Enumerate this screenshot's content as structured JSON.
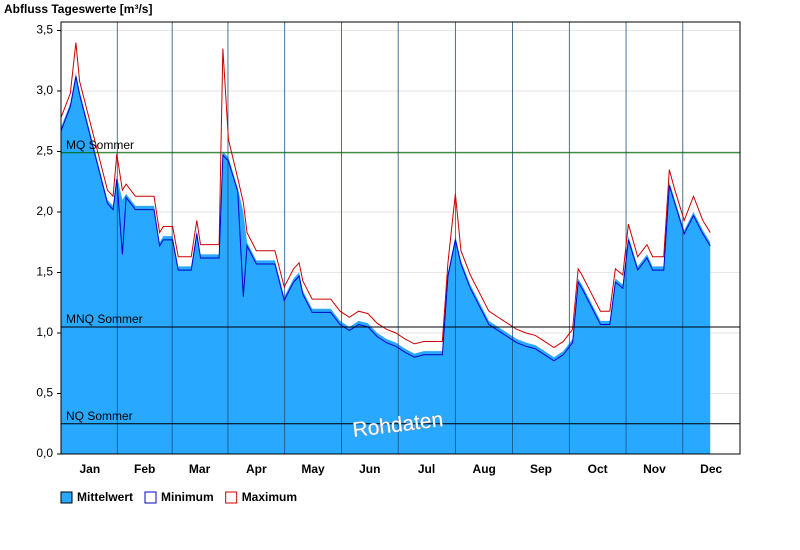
{
  "chart_data": {
    "type": "area",
    "title": "Abfluss Tageswerte [m³/s]",
    "watermark": "Rohdaten",
    "x": [
      0,
      5,
      8,
      10,
      15,
      20,
      25,
      28,
      30,
      33,
      35,
      40,
      45,
      50,
      53,
      55,
      60,
      63,
      65,
      70,
      73,
      75,
      80,
      85,
      87,
      90,
      95,
      98,
      100,
      105,
      110,
      115,
      120,
      125,
      128,
      130,
      135,
      140,
      145,
      150,
      155,
      160,
      165,
      170,
      175,
      180,
      185,
      190,
      195,
      200,
      205,
      208,
      212,
      215,
      220,
      225,
      230,
      235,
      240,
      245,
      250,
      255,
      260,
      265,
      270,
      275,
      278,
      280,
      285,
      290,
      295,
      298,
      302,
      305,
      310,
      315,
      318,
      320,
      324,
      327,
      330,
      335,
      340,
      345,
      349
    ],
    "series": [
      {
        "name": "Mittelwert",
        "color": "#29a8ff",
        "values": [
          2.7,
          2.9,
          3.15,
          3.0,
          2.7,
          2.4,
          2.1,
          2.05,
          2.3,
          2.1,
          2.15,
          2.05,
          2.05,
          2.05,
          1.75,
          1.8,
          1.8,
          1.55,
          1.55,
          1.55,
          1.85,
          1.65,
          1.65,
          1.65,
          2.5,
          2.45,
          2.2,
          2.0,
          1.75,
          1.6,
          1.6,
          1.6,
          1.3,
          1.45,
          1.5,
          1.35,
          1.2,
          1.2,
          1.2,
          1.1,
          1.05,
          1.1,
          1.08,
          1.0,
          0.95,
          0.92,
          0.87,
          0.83,
          0.85,
          0.85,
          0.85,
          1.5,
          1.8,
          1.6,
          1.4,
          1.25,
          1.1,
          1.05,
          1.0,
          0.95,
          0.92,
          0.9,
          0.85,
          0.8,
          0.85,
          0.95,
          1.45,
          1.4,
          1.25,
          1.1,
          1.1,
          1.45,
          1.4,
          1.8,
          1.55,
          1.65,
          1.55,
          1.55,
          1.55,
          2.25,
          2.1,
          1.85,
          2.0,
          1.85,
          1.75
        ]
      },
      {
        "name": "Minimum",
        "color": "#0000cc",
        "values": [
          2.67,
          2.87,
          3.12,
          2.97,
          2.67,
          2.37,
          2.07,
          2.02,
          2.27,
          1.65,
          2.12,
          2.02,
          2.02,
          2.02,
          1.72,
          1.77,
          1.77,
          1.52,
          1.52,
          1.52,
          1.82,
          1.62,
          1.62,
          1.62,
          2.47,
          2.42,
          2.17,
          1.3,
          1.72,
          1.57,
          1.57,
          1.57,
          1.27,
          1.42,
          1.47,
          1.32,
          1.17,
          1.17,
          1.17,
          1.07,
          1.02,
          1.07,
          1.05,
          0.97,
          0.92,
          0.89,
          0.84,
          0.8,
          0.82,
          0.82,
          0.82,
          1.47,
          1.77,
          1.57,
          1.37,
          1.22,
          1.07,
          1.02,
          0.97,
          0.92,
          0.89,
          0.87,
          0.82,
          0.77,
          0.82,
          0.92,
          1.42,
          1.37,
          1.22,
          1.07,
          1.07,
          1.42,
          1.37,
          1.77,
          1.52,
          1.62,
          1.52,
          1.52,
          1.52,
          2.22,
          2.07,
          1.82,
          1.97,
          1.82,
          1.72
        ]
      },
      {
        "name": "Maximum",
        "color": "#cc0000",
        "values": [
          2.78,
          2.98,
          3.4,
          3.08,
          2.78,
          2.48,
          2.18,
          2.13,
          2.48,
          2.18,
          2.23,
          2.13,
          2.13,
          2.13,
          1.83,
          1.88,
          1.88,
          1.63,
          1.63,
          1.63,
          1.93,
          1.73,
          1.73,
          1.73,
          3.35,
          2.6,
          2.28,
          2.08,
          1.83,
          1.68,
          1.68,
          1.68,
          1.38,
          1.53,
          1.58,
          1.43,
          1.28,
          1.28,
          1.28,
          1.18,
          1.13,
          1.18,
          1.16,
          1.08,
          1.03,
          1.0,
          0.95,
          0.91,
          0.93,
          0.93,
          0.93,
          1.58,
          2.15,
          1.68,
          1.48,
          1.33,
          1.18,
          1.13,
          1.08,
          1.03,
          1.0,
          0.98,
          0.93,
          0.88,
          0.93,
          1.03,
          1.53,
          1.48,
          1.33,
          1.18,
          1.18,
          1.53,
          1.48,
          1.9,
          1.63,
          1.73,
          1.63,
          1.63,
          1.63,
          2.35,
          2.18,
          1.93,
          2.13,
          1.93,
          1.83
        ]
      }
    ],
    "reference_lines": [
      {
        "label": "MQ Sommer",
        "value": 2.49,
        "color": "#006600"
      },
      {
        "label": "MNQ Sommer",
        "value": 1.05,
        "color": "#000000"
      },
      {
        "label": "NQ Sommer",
        "value": 0.25,
        "color": "#000000"
      }
    ],
    "xlim": [
      0,
      365
    ],
    "xticks": [
      {
        "value": 15.5,
        "label": "Jan"
      },
      {
        "value": 45,
        "label": "Feb"
      },
      {
        "value": 74.5,
        "label": "Mar"
      },
      {
        "value": 105,
        "label": "Apr"
      },
      {
        "value": 135.5,
        "label": "May"
      },
      {
        "value": 166,
        "label": "Jun"
      },
      {
        "value": 196.5,
        "label": "Jul"
      },
      {
        "value": 227.5,
        "label": "Aug"
      },
      {
        "value": 258,
        "label": "Sep"
      },
      {
        "value": 288.5,
        "label": "Oct"
      },
      {
        "value": 319,
        "label": "Nov"
      },
      {
        "value": 349.5,
        "label": "Dec"
      }
    ],
    "ylim": [
      0,
      3.57
    ],
    "yticks": [
      {
        "value": 0,
        "label": "0,0"
      },
      {
        "value": 0.5,
        "label": "0,5"
      },
      {
        "value": 1,
        "label": "1,0"
      },
      {
        "value": 1.5,
        "label": "1,5"
      },
      {
        "value": 2,
        "label": "2,0"
      },
      {
        "value": 2.5,
        "label": "2,5"
      },
      {
        "value": 3,
        "label": "3,0"
      },
      {
        "value": 3.5,
        "label": "3,5"
      }
    ],
    "grid": true
  }
}
